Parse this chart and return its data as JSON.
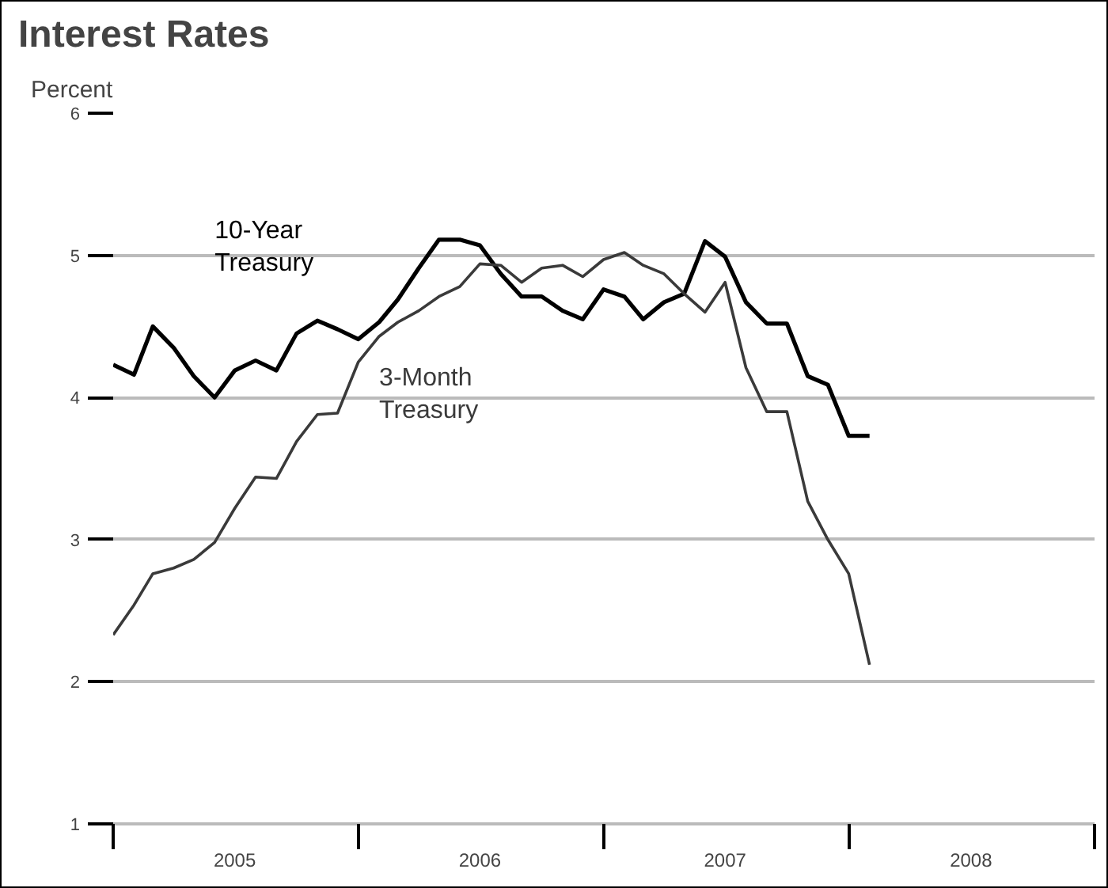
{
  "chart_data": {
    "type": "line",
    "title": "Interest Rates",
    "ylabel": "Percent",
    "x": [
      "2005-01",
      "2005-02",
      "2005-03",
      "2005-04",
      "2005-05",
      "2005-06",
      "2005-07",
      "2005-08",
      "2005-09",
      "2005-10",
      "2005-11",
      "2005-12",
      "2006-01",
      "2006-02",
      "2006-03",
      "2006-04",
      "2006-05",
      "2006-06",
      "2006-07",
      "2006-08",
      "2006-09",
      "2006-10",
      "2006-11",
      "2006-12",
      "2007-01",
      "2007-02",
      "2007-03",
      "2007-04",
      "2007-05",
      "2007-06",
      "2007-07",
      "2007-08",
      "2007-09",
      "2007-10",
      "2007-11",
      "2007-12",
      "2008-01",
      "2008-02"
    ],
    "series": [
      {
        "name": "10-Year\nTreasury",
        "color": "#000000",
        "values": [
          4.23,
          4.16,
          4.5,
          4.35,
          4.15,
          4.0,
          4.19,
          4.26,
          4.19,
          4.45,
          4.54,
          4.48,
          4.41,
          4.53,
          4.69,
          4.91,
          5.11,
          5.11,
          5.07,
          4.87,
          4.71,
          4.71,
          4.61,
          4.55,
          4.76,
          4.71,
          4.55,
          4.67,
          4.73,
          5.1,
          4.99,
          4.67,
          4.52,
          4.52,
          4.15,
          4.09,
          3.73,
          3.73
        ]
      },
      {
        "name": "3-Month\nTreasury",
        "color": "#3a3a3a",
        "values": [
          2.33,
          2.54,
          2.76,
          2.8,
          2.86,
          2.98,
          3.22,
          3.44,
          3.43,
          3.69,
          3.88,
          3.89,
          4.25,
          4.43,
          4.53,
          4.61,
          4.71,
          4.78,
          4.94,
          4.93,
          4.81,
          4.91,
          4.93,
          4.85,
          4.97,
          5.02,
          4.93,
          4.87,
          4.73,
          4.6,
          4.81,
          4.21,
          3.9,
          3.9,
          3.27,
          3.0,
          2.76,
          2.12
        ]
      }
    ],
    "xlim": [
      "2005-01-01",
      "2009-01-01"
    ],
    "xticks": [
      {
        "value": "2005-01-01",
        "label": null
      },
      {
        "value": "2005-07-01",
        "label": "2005"
      },
      {
        "value": "2006-01-01",
        "label": null
      },
      {
        "value": "2006-07-01",
        "label": "2006"
      },
      {
        "value": "2007-01-01",
        "label": null
      },
      {
        "value": "2007-07-01",
        "label": "2007"
      },
      {
        "value": "2008-01-01",
        "label": null
      },
      {
        "value": "2008-07-01",
        "label": "2008"
      },
      {
        "value": "2009-01-01",
        "label": null
      }
    ],
    "ylim": [
      1,
      6
    ],
    "yticks": [
      1,
      2,
      3,
      4,
      5,
      6
    ],
    "grid": "y"
  }
}
